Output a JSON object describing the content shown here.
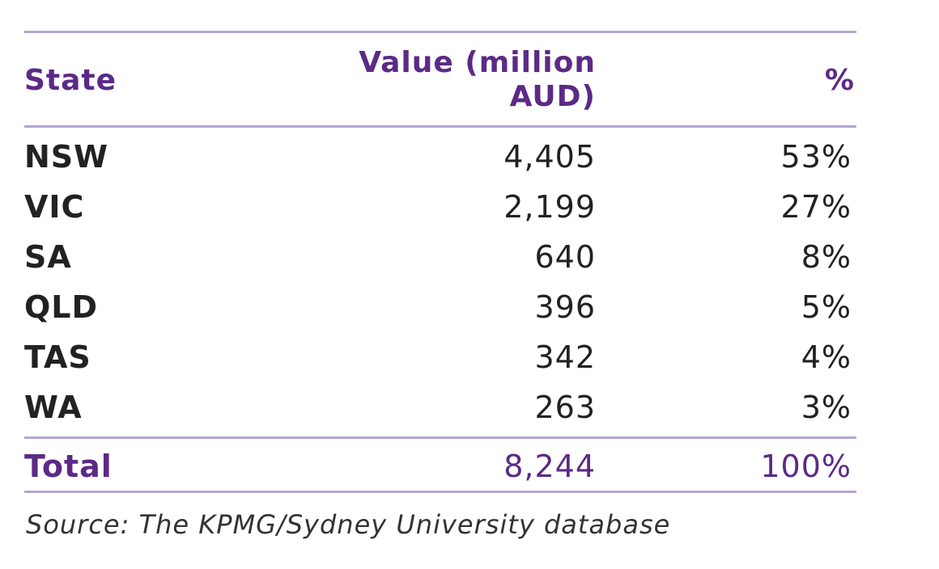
{
  "table": {
    "headers": {
      "state": "State",
      "value_line1": "Value (million",
      "value_line2": "AUD)",
      "percent": "%"
    },
    "rows": [
      {
        "state": "NSW",
        "value": "4,405",
        "percent": "53%"
      },
      {
        "state": "VIC",
        "value": "2,199",
        "percent": "27%"
      },
      {
        "state": "SA",
        "value": "640",
        "percent": "8%"
      },
      {
        "state": "QLD",
        "value": "396",
        "percent": "5%"
      },
      {
        "state": "TAS",
        "value": "342",
        "percent": "4%"
      },
      {
        "state": "WA",
        "value": "263",
        "percent": "3%"
      }
    ],
    "total": {
      "state": "Total",
      "value": "8,244",
      "percent": "100%"
    }
  },
  "source": "Source: The KPMG/Sydney University database",
  "colors": {
    "accent": "#5b2a86",
    "rule": "#b5a6d0",
    "text": "#222222"
  }
}
